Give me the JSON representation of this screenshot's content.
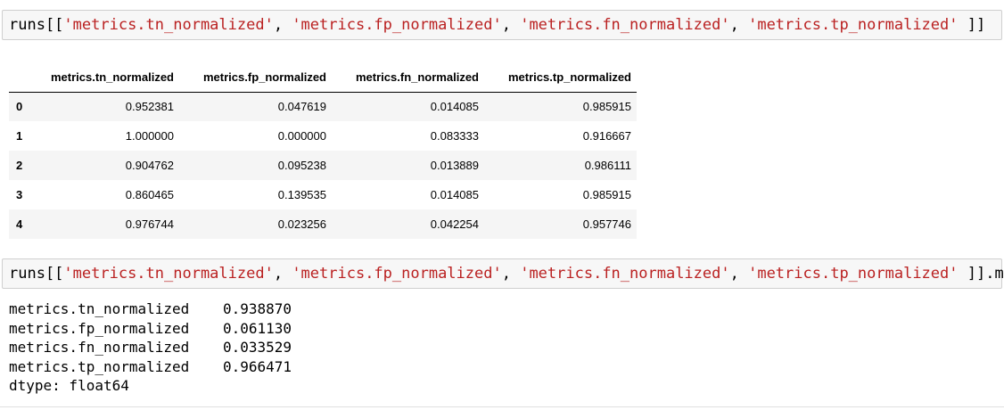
{
  "cell1": {
    "prefix": "runs[[",
    "args": [
      "'metrics.tn_normalized'",
      "'metrics.fp_normalized'",
      "'metrics.fn_normalized'",
      "'metrics.tp_normalized'"
    ],
    "suffix": " ]]"
  },
  "table": {
    "columns": [
      "metrics.tn_normalized",
      "metrics.fp_normalized",
      "metrics.fn_normalized",
      "metrics.tp_normalized"
    ],
    "rows": [
      {
        "index": "0",
        "values": [
          "0.952381",
          "0.047619",
          "0.014085",
          "0.985915"
        ]
      },
      {
        "index": "1",
        "values": [
          "1.000000",
          "0.000000",
          "0.083333",
          "0.916667"
        ]
      },
      {
        "index": "2",
        "values": [
          "0.904762",
          "0.095238",
          "0.013889",
          "0.986111"
        ]
      },
      {
        "index": "3",
        "values": [
          "0.860465",
          "0.139535",
          "0.014085",
          "0.985915"
        ]
      },
      {
        "index": "4",
        "values": [
          "0.976744",
          "0.023256",
          "0.042254",
          "0.957746"
        ]
      }
    ]
  },
  "cell2": {
    "prefix": "runs[[",
    "args": [
      "'metrics.tn_normalized'",
      "'metrics.fp_normalized'",
      "'metrics.fn_normalized'",
      "'metrics.tp_normalized'"
    ],
    "suffix": " ]].mean()"
  },
  "mean_output": {
    "rows": [
      {
        "key": "metrics.tn_normalized",
        "value": "0.938870"
      },
      {
        "key": "metrics.fp_normalized",
        "value": "0.061130"
      },
      {
        "key": "metrics.fn_normalized",
        "value": "0.033529"
      },
      {
        "key": "metrics.tp_normalized",
        "value": "0.966471"
      }
    ],
    "dtype": "dtype: float64"
  },
  "colors": {
    "string_literal": "#ba2121",
    "cell_background": "#f7f7f7",
    "row_stripe": "#f5f5f5"
  }
}
